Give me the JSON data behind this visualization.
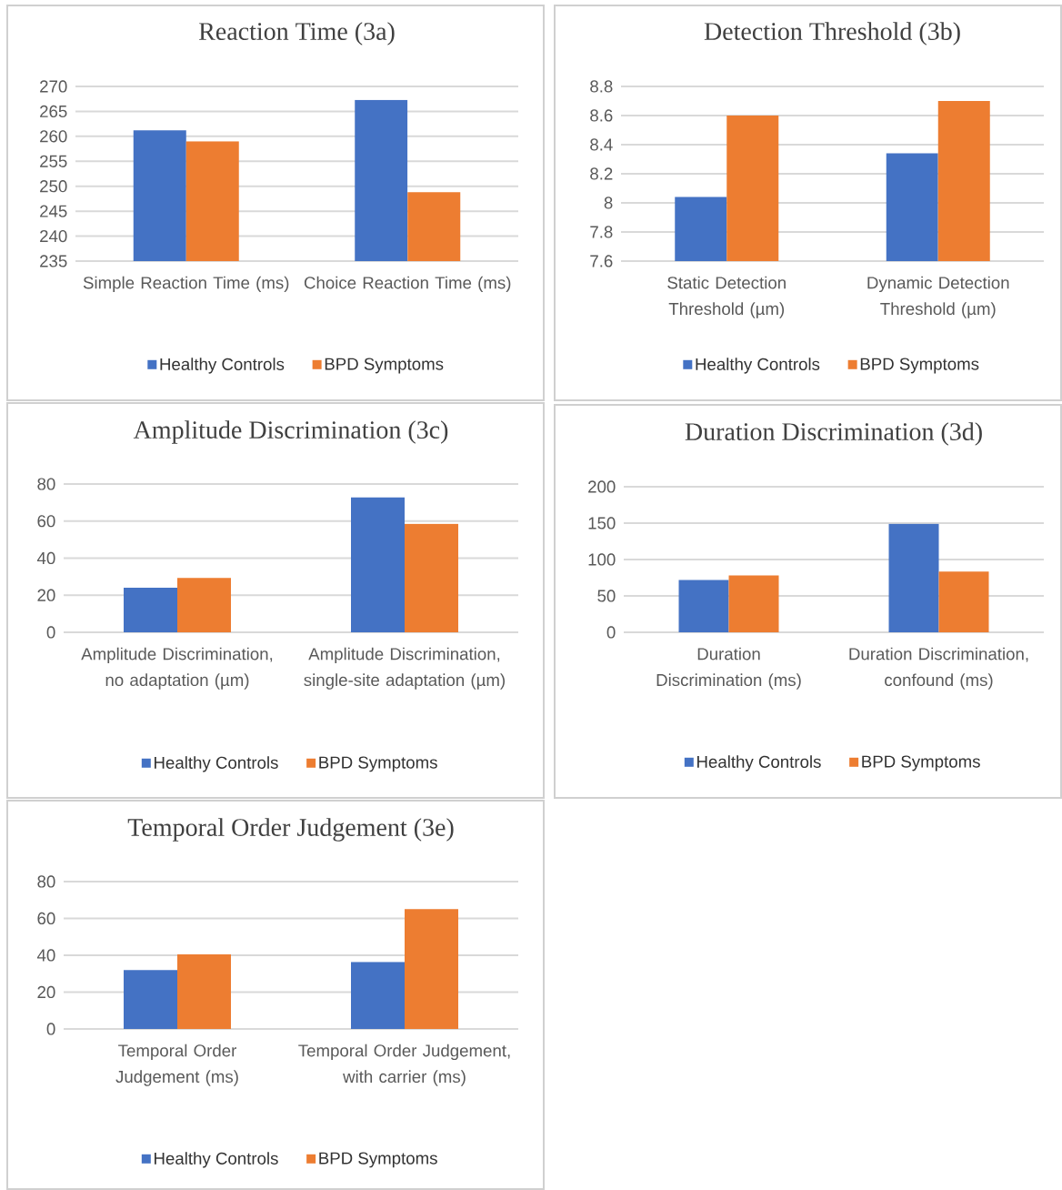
{
  "chart_data": [
    {
      "type": "bar",
      "title": "Reaction Time (3a)",
      "categories": [
        "Simple Reaction Time (ms)",
        "Choice Reaction Time (ms)"
      ],
      "ylim": [
        235,
        270
      ],
      "yticks": [
        235,
        240,
        245,
        250,
        255,
        260,
        265,
        270
      ],
      "grid": "y",
      "legend": "bottom",
      "series": [
        {
          "name": "Healthy Controls",
          "color": "#4472c4",
          "values": [
            261.2,
            267.3
          ]
        },
        {
          "name": "BPD Symptoms",
          "color": "#ed7d31",
          "values": [
            259.0,
            248.8
          ]
        }
      ]
    },
    {
      "type": "bar",
      "title": "Detection Threshold (3b)",
      "categories": [
        "Static Detection Threshold (µm)",
        "Dynamic Detection Threshold (µm)"
      ],
      "ylim": [
        7.6,
        8.8
      ],
      "yticks": [
        7.6,
        7.8,
        8,
        8.2,
        8.4,
        8.6,
        8.8
      ],
      "grid": "y",
      "legend": "bottom",
      "series": [
        {
          "name": "Healthy Controls",
          "color": "#4472c4",
          "values": [
            8.04,
            8.34
          ]
        },
        {
          "name": "BPD Symptoms",
          "color": "#ed7d31",
          "values": [
            8.6,
            8.7
          ]
        }
      ]
    },
    {
      "type": "bar",
      "title": "Amplitude Discrimination (3c)",
      "categories": [
        "Amplitude Discrimination, no adaptation (µm)",
        "Amplitude Discrimination, single-site adaptation (µm)"
      ],
      "ylim": [
        0,
        80
      ],
      "yticks": [
        0,
        20,
        40,
        60,
        80
      ],
      "grid": "y",
      "legend": "bottom",
      "series": [
        {
          "name": "Healthy Controls",
          "color": "#4472c4",
          "values": [
            24,
            72.7
          ]
        },
        {
          "name": "BPD Symptoms",
          "color": "#ed7d31",
          "values": [
            29.3,
            58.5
          ]
        }
      ]
    },
    {
      "type": "bar",
      "title": "Duration Discrimination (3d)",
      "categories": [
        "Duration Discrimination (ms)",
        "Duration Discrimination, confound (ms)"
      ],
      "ylim": [
        0,
        200
      ],
      "yticks": [
        0,
        50,
        100,
        150,
        200
      ],
      "grid": "y",
      "legend": "bottom",
      "series": [
        {
          "name": "Healthy Controls",
          "color": "#4472c4",
          "values": [
            72,
            149
          ]
        },
        {
          "name": "BPD Symptoms",
          "color": "#ed7d31",
          "values": [
            78,
            83.5
          ]
        }
      ]
    },
    {
      "type": "bar",
      "title": "Temporal Order Judgement (3e)",
      "categories": [
        "Temporal Order Judgement (ms)",
        "Temporal Order Judgement, with carrier (ms)"
      ],
      "ylim": [
        0,
        80
      ],
      "yticks": [
        0,
        20,
        40,
        60,
        80
      ],
      "grid": "y",
      "legend": "bottom",
      "series": [
        {
          "name": "Healthy Controls",
          "color": "#4472c4",
          "values": [
            32,
            36.4
          ]
        },
        {
          "name": "BPD Symptoms",
          "color": "#ed7d31",
          "values": [
            40.5,
            65
          ]
        }
      ]
    }
  ]
}
